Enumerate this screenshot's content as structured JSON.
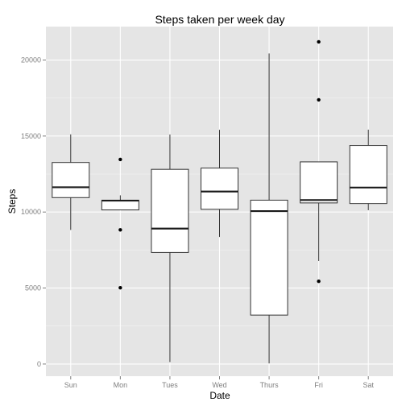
{
  "chart_data": {
    "type": "box",
    "title": "Steps taken per week day",
    "xlabel": "Date",
    "ylabel": "Steps",
    "categories": [
      "Sun",
      "Mon",
      "Tues",
      "Wed",
      "Thurs",
      "Fri",
      "Sat"
    ],
    "ylim": [
      -800,
      22200
    ],
    "yticks": [
      0,
      5000,
      10000,
      15000,
      20000
    ],
    "ytick_labels": [
      "0",
      "5000",
      "10000",
      "15000",
      "20000"
    ],
    "grid": true,
    "colors": {
      "panel": "#e5e5e5",
      "grid_major": "#ffffff",
      "grid_minor": "#f2f2f2",
      "box_fill": "#ffffff",
      "box_line": "#333333",
      "median": "#1a1a1a",
      "outlier": "#000000"
    },
    "boxes": [
      {
        "category": "Sun",
        "whisker_low": 8821,
        "q1": 10950,
        "median": 11630,
        "q3": 13260,
        "whisker_high": 15110,
        "outliers": []
      },
      {
        "category": "Mon",
        "whisker_low": 10139,
        "q1": 10139,
        "median": 10750,
        "q3": 10780,
        "whisker_high": 11100,
        "outliers": [
          13460,
          8830,
          5020
        ]
      },
      {
        "category": "Tues",
        "whisker_low": 126,
        "q1": 7340,
        "median": 8910,
        "q3": 12810,
        "whisker_high": 15100,
        "outliers": []
      },
      {
        "category": "Wed",
        "whisker_low": 8360,
        "q1": 10180,
        "median": 11350,
        "q3": 12890,
        "whisker_high": 15410,
        "outliers": []
      },
      {
        "category": "Thurs",
        "whisker_low": 41,
        "q1": 3220,
        "median": 10060,
        "q3": 10780,
        "whisker_high": 20430,
        "outliers": []
      },
      {
        "category": "Fri",
        "whisker_low": 6780,
        "q1": 10600,
        "median": 10790,
        "q3": 13300,
        "whisker_high": 13300,
        "outliers": [
          21194,
          17382,
          5441
        ]
      },
      {
        "category": "Sat",
        "whisker_low": 10119,
        "q1": 10560,
        "median": 11610,
        "q3": 14380,
        "whisker_high": 15420,
        "outliers": []
      }
    ]
  }
}
